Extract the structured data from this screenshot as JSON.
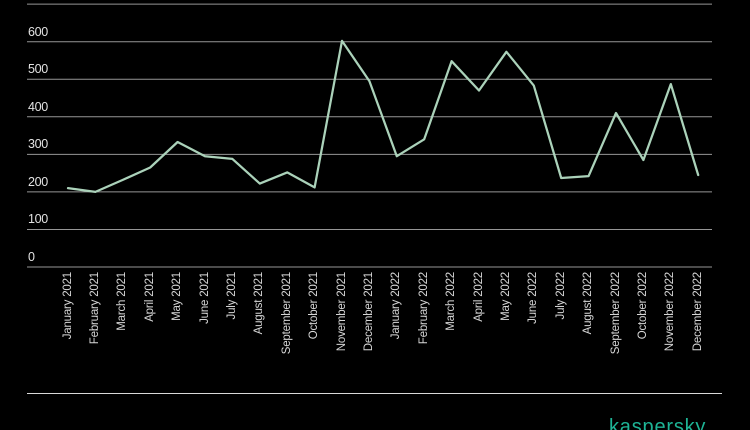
{
  "page": {
    "background_color": "#000000",
    "brand": {
      "logo_text": "kaspersky",
      "logo_color": "#1eb496"
    }
  },
  "chart_data": {
    "type": "line",
    "categories": [
      "January 2021",
      "February 2021",
      "March 2021",
      "April 2021",
      "May 2021",
      "June 2021",
      "July 2021",
      "August 2021",
      "September 2021",
      "October 2021",
      "November 2021",
      "December 2021",
      "January 2022",
      "February 2022",
      "March 2022",
      "April 2022",
      "May 2022",
      "June 2022",
      "July 2022",
      "August 2022",
      "September 2022",
      "October 2022",
      "November 2022",
      "December 2022"
    ],
    "values": [
      210,
      200,
      232,
      265,
      333,
      295,
      288,
      222,
      252,
      212,
      602,
      495,
      295,
      340,
      548,
      470,
      573,
      483,
      237,
      242,
      410,
      285,
      487,
      245
    ],
    "ylim": [
      0,
      700
    ],
    "yticks": [
      0,
      100,
      200,
      300,
      400,
      500,
      600,
      700
    ],
    "grid": true,
    "legend": "none",
    "series_color": "#abd2ba",
    "gridline_color": "#969696",
    "axis_label_color": "#d6d6d6"
  }
}
